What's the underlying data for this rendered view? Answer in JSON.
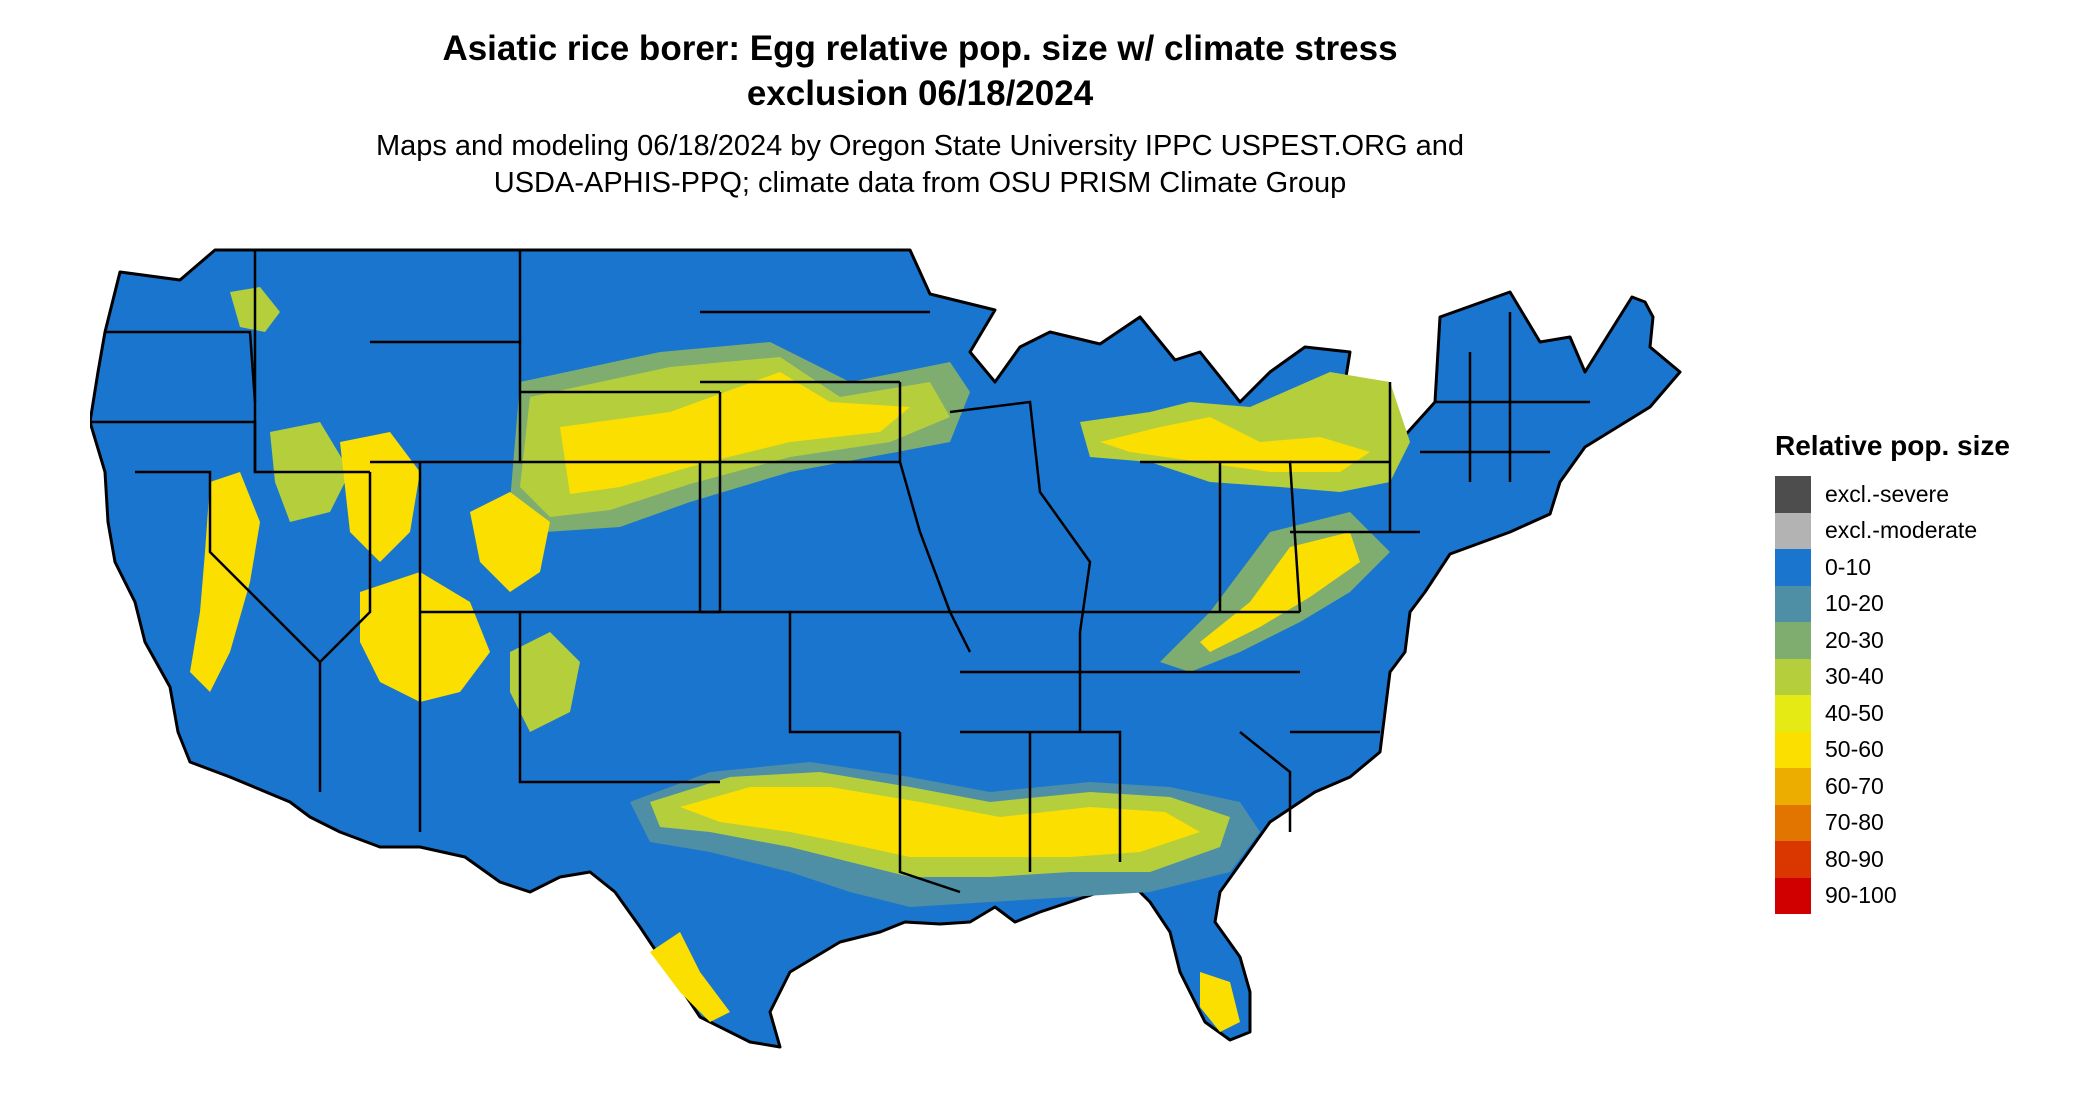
{
  "title_line1": "Asiatic rice borer: Egg relative pop. size w/ climate stress",
  "title_line2": "exclusion 06/18/2024",
  "subtitle_line1": "Maps and modeling 06/18/2024 by Oregon State University IPPC USPEST.ORG and",
  "subtitle_line2": "USDA-APHIS-PPQ; climate data from OSU PRISM Climate Group",
  "legend": {
    "title": "Relative pop. size",
    "items": [
      {
        "label": "excl.-severe",
        "color": "#4d4d4d"
      },
      {
        "label": "excl.-moderate",
        "color": "#b3b3b3"
      },
      {
        "label": "0-10",
        "color": "#1a75cf"
      },
      {
        "label": "10-20",
        "color": "#4f8fa6"
      },
      {
        "label": "20-30",
        "color": "#7fad70"
      },
      {
        "label": "30-40",
        "color": "#b5cf3c"
      },
      {
        "label": "40-50",
        "color": "#e5ea14"
      },
      {
        "label": "50-60",
        "color": "#fadf00"
      },
      {
        "label": "60-70",
        "color": "#edad00"
      },
      {
        "label": "70-80",
        "color": "#e27500"
      },
      {
        "label": "80-90",
        "color": "#d93600"
      },
      {
        "label": "90-100",
        "color": "#d10000"
      }
    ]
  },
  "map": {
    "region": "Contiguous United States",
    "base_color": "#1a75cf",
    "border_color": "#000000"
  }
}
